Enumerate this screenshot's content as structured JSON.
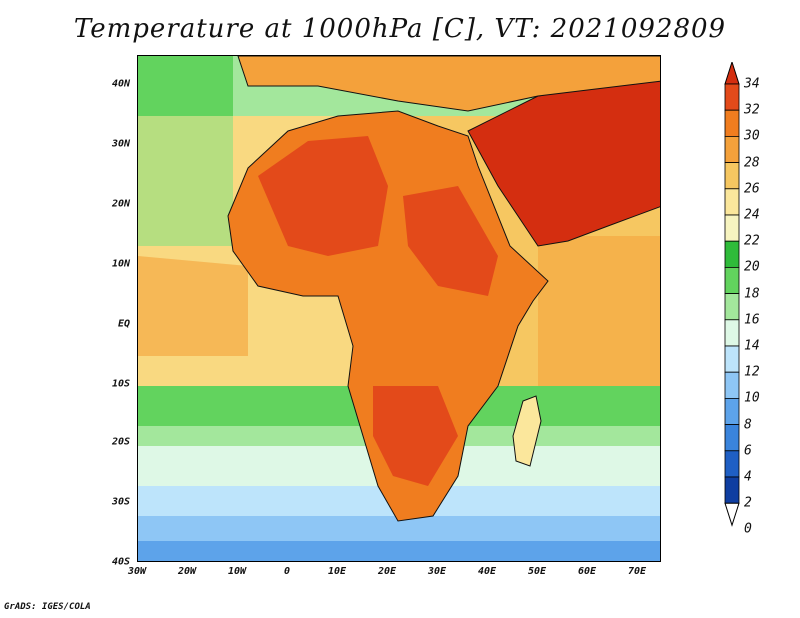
{
  "title": "Temperature at 1000hPa [C], VT: 2021092809",
  "credit": "GrADS: IGES/COLA",
  "x_ticks": [
    "30W",
    "20W",
    "10W",
    "0",
    "10E",
    "20E",
    "30E",
    "40E",
    "50E",
    "60E",
    "70E"
  ],
  "y_ticks": [
    "40N",
    "30N",
    "20N",
    "10N",
    "EQ",
    "10S",
    "20S",
    "30S",
    "40S"
  ],
  "colorbar": {
    "labels": [
      "34",
      "32",
      "30",
      "28",
      "26",
      "24",
      "22",
      "20",
      "18",
      "16",
      "14",
      "12",
      "10",
      "8",
      "6",
      "4",
      "2",
      "0"
    ],
    "colors": [
      "#d42e10",
      "#e34a1a",
      "#f07d1f",
      "#f4a13b",
      "#f6c761",
      "#fbe79c",
      "#f7f4c0",
      "#2fbb3a",
      "#62d35e",
      "#a3e79c",
      "#def8e6",
      "#bde4fb",
      "#8ec6f5",
      "#5da3ea",
      "#3a84dc",
      "#1f5fc4",
      "#0f3ea1",
      "#0a2074"
    ]
  },
  "map": {
    "projection": "latlon",
    "lon_range": [
      -30,
      75
    ],
    "lat_range": [
      -40,
      45
    ],
    "ocean_base_color": "#f6c761",
    "hot_land_color": "#e34a1a",
    "hottest_color": "#d42e10"
  }
}
